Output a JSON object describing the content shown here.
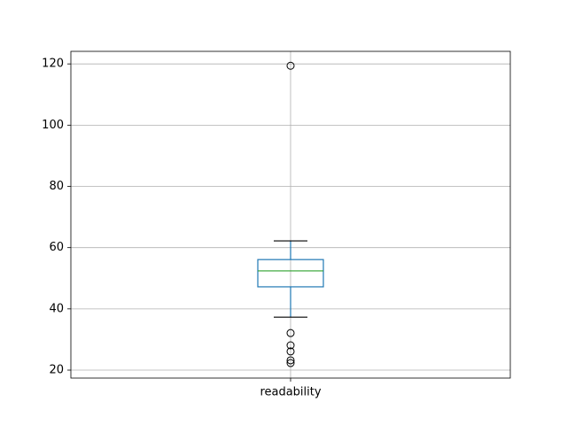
{
  "chart_data": {
    "type": "box",
    "categories": [
      "readability"
    ],
    "boxes": [
      {
        "whislo": 37.3,
        "q1": 47.2,
        "med": 52.4,
        "q3": 56.1,
        "whishi": 62.2,
        "fliers": [
          119.4,
          32.1,
          28.1,
          26.1,
          23.2,
          22.3
        ]
      }
    ],
    "box_color": "#1f77b4",
    "median_color": "#2ca02c",
    "ylim": [
      17.4,
      124.1
    ],
    "yticks": [
      20,
      40,
      60,
      80,
      100,
      120
    ],
    "grid": true
  }
}
